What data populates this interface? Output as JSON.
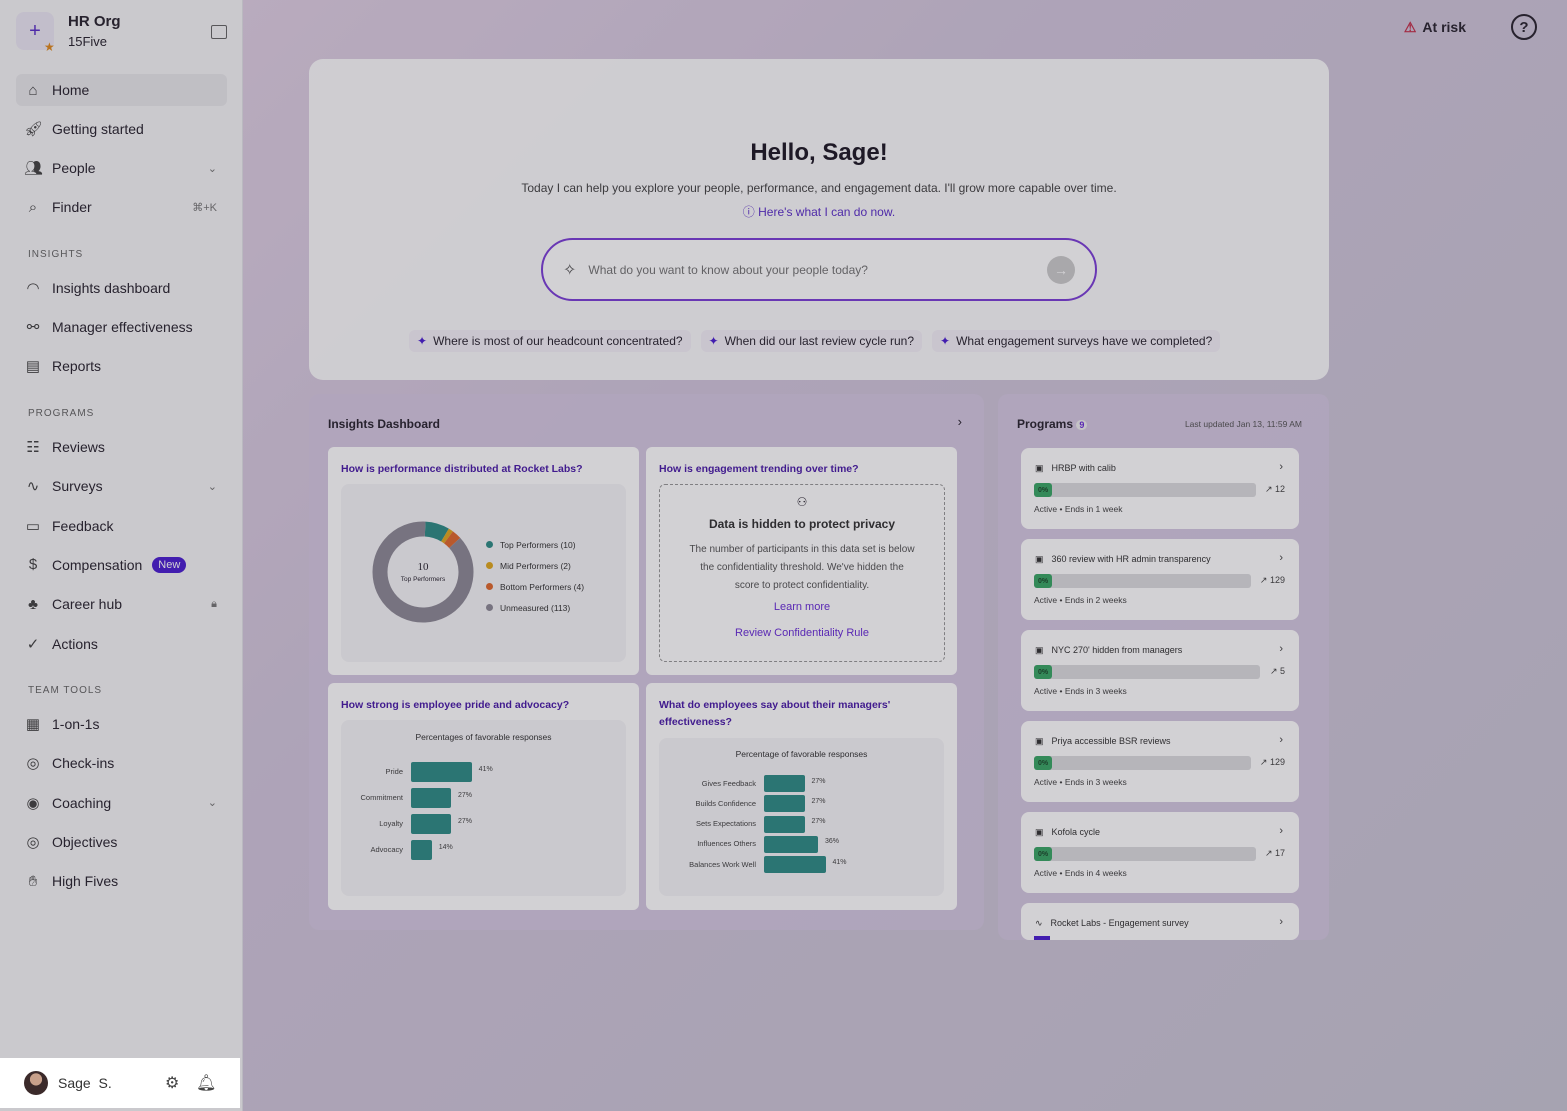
{
  "org": {
    "name": "HR Org",
    "sub": "15Five"
  },
  "nav": [
    {
      "label": "Home",
      "icon": "home-icon",
      "active": true
    },
    {
      "label": "Getting started",
      "icon": "rocket-icon"
    },
    {
      "label": "People",
      "icon": "people-icon",
      "chevron": true
    },
    {
      "label": "Finder",
      "icon": "finder-icon",
      "shortcut": "⌘+K"
    }
  ],
  "sections": {
    "insights": "INSIGHTS",
    "programs": "PROGRAMS",
    "team_tools": "TEAM TOOLS"
  },
  "insights_nav": [
    {
      "label": "Insights dashboard"
    },
    {
      "label": "Manager effectiveness"
    },
    {
      "label": "Reports"
    }
  ],
  "programs_nav": [
    {
      "label": "Reviews"
    },
    {
      "label": "Surveys"
    },
    {
      "label": "Feedback"
    },
    {
      "label": "Compensation",
      "badge": "New"
    },
    {
      "label": "Career hub",
      "locked": true
    },
    {
      "label": "Actions"
    }
  ],
  "team_nav": [
    {
      "label": "1-on-1s"
    },
    {
      "label": "Check-ins"
    },
    {
      "label": "Coaching"
    },
    {
      "label": "Objectives"
    },
    {
      "label": "High Fives"
    }
  ],
  "user": {
    "name": "Sage",
    "initial": "S."
  },
  "topbar": {
    "at_risk": "At risk",
    "help": "?"
  },
  "hero": {
    "title": "Hello, Sage!",
    "subtitle": "Today I can help you explore your people, performance, and engagement data. I'll grow more capable over time.",
    "link": "Here's what I can do now.",
    "placeholder": "What do you want to know about your people today?",
    "chips": [
      "Where is most of our headcount concentrated?",
      "When did our last review cycle run?",
      "What engagement surveys have we completed?"
    ]
  },
  "dashboard": {
    "title": "Insights Dashboard",
    "perf": {
      "question": "How is performance distributed at Rocket Labs?",
      "center_value": "10",
      "center_label": "Top Performers",
      "legend": [
        {
          "label": "Top Performers (10)",
          "value": 10,
          "color": "#2f8d86"
        },
        {
          "label": "Mid Performers (2)",
          "value": 2,
          "color": "#e0a81e"
        },
        {
          "label": "Bottom Performers (4)",
          "value": 4,
          "color": "#e06a2e"
        },
        {
          "label": "Unmeasured (113)",
          "value": 113,
          "color": "#8e8a96"
        }
      ]
    },
    "engagement": {
      "question": "How is engagement trending over time?",
      "hidden_title": "Data is hidden to protect privacy",
      "hidden_text": "The number of participants in this data set is below the confidentiality threshold. We've hidden the score to protect confidentiality.",
      "learn_more": "Learn more",
      "review_rule": "Review Confidentiality Rule"
    },
    "pride": {
      "question": "How strong is employee pride and advocacy?",
      "chart_title": "Percentages of favorable responses",
      "categories": [
        "Pride",
        "Commitment",
        "Loyalty",
        "Advocacy"
      ],
      "values": [
        41,
        27,
        27,
        14
      ]
    },
    "managers": {
      "question": "What do employees say about their managers' effectiveness?",
      "chart_title": "Percentage of favorable responses",
      "categories": [
        "Gives Feedback",
        "Builds Confidence",
        "Sets Expectations",
        "Influences Others",
        "Balances Work Well"
      ],
      "values": [
        27,
        27,
        27,
        36,
        41
      ]
    }
  },
  "chart_data": [
    {
      "type": "pie",
      "title": "",
      "categories": [
        "Top Performers",
        "Mid Performers",
        "Bottom Performers",
        "Unmeasured"
      ],
      "values": [
        10,
        2,
        4,
        113
      ]
    },
    {
      "type": "bar",
      "title": "Percentages of favorable responses",
      "categories": [
        "Pride",
        "Commitment",
        "Loyalty",
        "Advocacy"
      ],
      "values": [
        41,
        27,
        27,
        14
      ],
      "unit": "%"
    },
    {
      "type": "bar",
      "title": "Percentage of favorable responses",
      "categories": [
        "Gives Feedback",
        "Builds Confidence",
        "Sets Expectations",
        "Influences Others",
        "Balances Work Well"
      ],
      "values": [
        27,
        27,
        27,
        36,
        41
      ],
      "unit": "%"
    }
  ],
  "programs": {
    "title": "Programs",
    "count": "9",
    "updated": "Last updated Jan 13, 11:59 AM",
    "items": [
      {
        "name": "HRBP with calib",
        "progress": "0%",
        "count": "12",
        "status": "Active • Ends in 1 week"
      },
      {
        "name": "360 review with HR admin transparency",
        "progress": "0%",
        "count": "129",
        "status": "Active • Ends in 2 weeks"
      },
      {
        "name": "NYC 270' hidden from managers",
        "progress": "0%",
        "count": "5",
        "status": "Active • Ends in 3 weeks"
      },
      {
        "name": "Priya accessible BSR reviews",
        "progress": "0%",
        "count": "129",
        "status": "Active • Ends in 3 weeks"
      },
      {
        "name": "Kofola cycle",
        "progress": "0%",
        "count": "17",
        "status": "Active • Ends in 4 weeks"
      },
      {
        "name": "Rocket Labs - Engagement survey",
        "progress": "",
        "count": "",
        "status": ""
      }
    ]
  }
}
